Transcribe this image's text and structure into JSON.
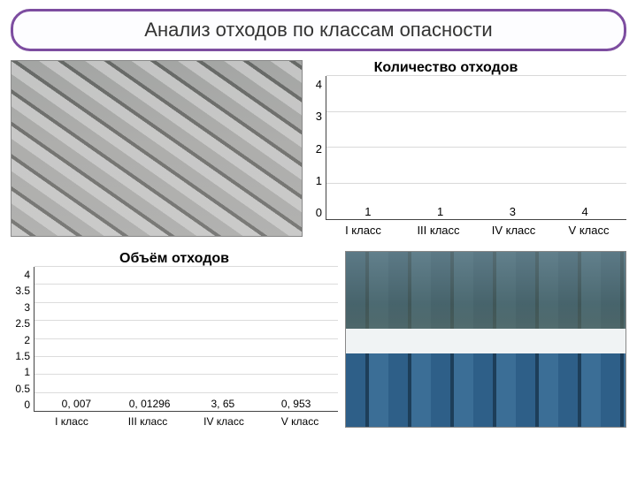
{
  "title": "Анализ отходов по классам опасности",
  "title_bar": {
    "border_color": "#7d4da0",
    "bg": "#fdfdff",
    "text_color": "#333333",
    "font_size": 22
  },
  "chart1": {
    "type": "bar",
    "title": "Количество отходов",
    "title_fontsize": 16,
    "categories": [
      "I класс",
      "III класс",
      "IV класс",
      "V класс"
    ],
    "values": [
      1,
      1,
      3,
      4
    ],
    "value_labels": [
      "1",
      "1",
      "3",
      "4"
    ],
    "bar_colors": [
      "#2ecc40",
      "#3da9e0",
      "#ff1f1f",
      "#ffe600"
    ],
    "ylim": [
      0,
      4
    ],
    "ytick_step": 1,
    "label_fontsize": 13,
    "grid_color": "#d9d9d9",
    "axis_color": "#444444",
    "bar_width": 0.6
  },
  "chart2": {
    "type": "bar",
    "title": "Объём отходов",
    "title_fontsize": 16,
    "categories": [
      "I класс",
      "III класс",
      "IV класс",
      "V класс"
    ],
    "values": [
      0.007,
      0.01296,
      3.65,
      0.953
    ],
    "value_labels": [
      "0, 007",
      "0, 01296",
      "3, 65",
      "0, 953"
    ],
    "bar_colors": [
      "#ff1f1f",
      "#3da9e0",
      "#b94fdc",
      "#2ecc40"
    ],
    "ylim": [
      0,
      4
    ],
    "ytick_step": 0.5,
    "label_fontsize": 12,
    "grid_color": "#dcdcdc",
    "axis_color": "#444444",
    "bar_width": 0.45
  }
}
